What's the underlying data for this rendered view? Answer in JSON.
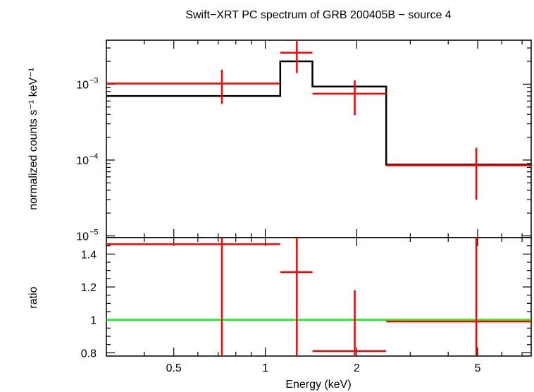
{
  "chart_data": {
    "type": "scatter",
    "title": "Swift−XRT PC spectrum of GRB 200405B − source 4",
    "xlabel": "Energy (keV)",
    "xscale": "log",
    "xlim": [
      0.3,
      7.5
    ],
    "x_ticks": [
      0.5,
      1,
      2,
      5
    ],
    "x_tick_labels": [
      "0.5",
      "1",
      "2",
      "5"
    ],
    "colors": {
      "data": "#ff0000",
      "model": "#000000",
      "ratio_line": "#00ff00",
      "axes": "#000000"
    },
    "top_panel": {
      "ylabel": "normalized counts s⁻¹ keV⁻¹",
      "yscale": "log",
      "ylim": [
        9.5e-06,
        0.0038
      ],
      "y_ticks": [
        1e-05,
        0.0001,
        0.001
      ],
      "y_tick_labels": [
        {
          "base": "10",
          "exp": "−5"
        },
        {
          "base": "10",
          "exp": "−4"
        },
        {
          "base": "10",
          "exp": "−3"
        }
      ],
      "data_points": [
        {
          "x": 0.72,
          "xlo": 0.3,
          "xhi": 1.12,
          "y": 0.00102,
          "ylo": 0.00055,
          "yhi": 0.00155
        },
        {
          "x": 1.27,
          "xlo": 1.12,
          "xhi": 1.43,
          "y": 0.0026,
          "ylo": 0.0014,
          "yhi": 0.0037
        },
        {
          "x": 1.97,
          "xlo": 1.43,
          "xhi": 2.5,
          "y": 0.00075,
          "ylo": 0.00039,
          "yhi": 0.00112
        },
        {
          "x": 4.95,
          "xlo": 2.5,
          "xhi": 7.5,
          "y": 8.5e-05,
          "ylo": 3e-05,
          "yhi": 0.000145
        }
      ],
      "model_steps": [
        {
          "xlo": 0.3,
          "xhi": 1.12,
          "y": 0.0007
        },
        {
          "xlo": 1.12,
          "xhi": 1.43,
          "y": 0.002
        },
        {
          "xlo": 1.43,
          "xhi": 2.5,
          "y": 0.00093
        },
        {
          "xlo": 2.5,
          "xhi": 7.5,
          "y": 8.7e-05
        }
      ]
    },
    "bottom_panel": {
      "ylabel": "ratio",
      "yscale": "linear",
      "ylim": [
        0.78,
        1.5
      ],
      "y_ticks": [
        0.8,
        1,
        1.2,
        1.4
      ],
      "y_tick_labels": [
        "0.8",
        "1",
        "1.2",
        "1.4"
      ],
      "reference_y": 1,
      "data_points": [
        {
          "x": 0.72,
          "xlo": 0.3,
          "xhi": 1.12,
          "y": 1.46,
          "ylo": 0.78,
          "yhi": 1.5
        },
        {
          "x": 1.27,
          "xlo": 1.12,
          "xhi": 1.43,
          "y": 1.29,
          "ylo": 0.78,
          "yhi": 1.5
        },
        {
          "x": 1.97,
          "xlo": 1.43,
          "xhi": 2.5,
          "y": 0.81,
          "ylo": 0.78,
          "yhi": 1.18
        },
        {
          "x": 4.95,
          "xlo": 2.5,
          "xhi": 7.5,
          "y": 0.99,
          "ylo": 0.78,
          "yhi": 1.5
        }
      ]
    }
  }
}
